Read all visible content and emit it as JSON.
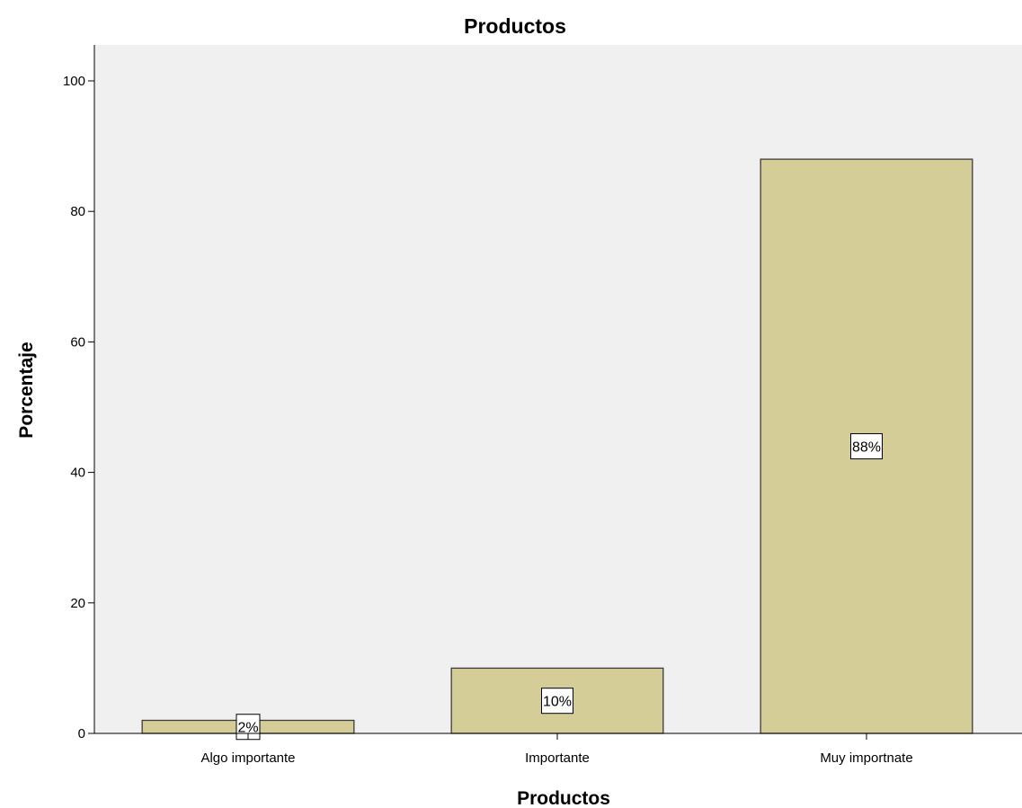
{
  "chart_data": {
    "type": "bar",
    "title": "Productos",
    "xlabel": "Productos",
    "ylabel": "Porcentaje",
    "categories": [
      "Algo importante",
      "Importante",
      "Muy importnate"
    ],
    "values": [
      2,
      10,
      88
    ],
    "data_labels": [
      "2%",
      "10%",
      "88%"
    ],
    "ylim": [
      0,
      100
    ],
    "yticks": [
      0,
      20,
      40,
      60,
      80,
      100
    ],
    "grid": false,
    "legend": "none",
    "colors": {
      "bar_fill": "#d4cd97",
      "bar_stroke": "#3c3c3c",
      "plot_background": "#f0f0f0",
      "label_box": "#ffffff"
    }
  }
}
